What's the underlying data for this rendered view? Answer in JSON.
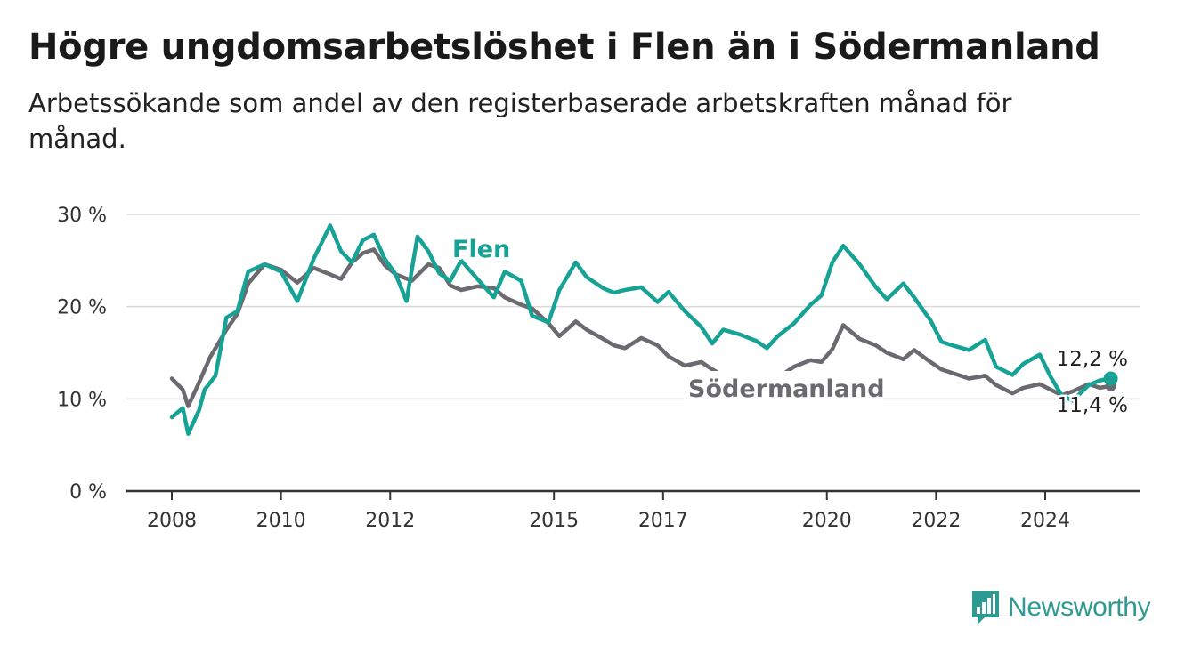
{
  "header": {
    "title": "Högre ungdomsarbetslöshet i Flen än i Södermanland",
    "subtitle": "Arbetssökande som andel av den registerbaserade arbetskraften månad för månad."
  },
  "brand": {
    "name": "Newsworthy",
    "color": "#2e9a92"
  },
  "colors": {
    "flen": "#17a296",
    "sodermanland": "#6b6a70",
    "grid": "#d9d9d9",
    "axis": "#333333"
  },
  "chart_data": {
    "type": "line",
    "title": "Högre ungdomsarbetslöshet i Flen än i Södermanland",
    "subtitle": "Arbetssökande som andel av den registerbaserade arbetskraften månad för månad.",
    "xlabel": "",
    "ylabel": "",
    "xlim": [
      2008,
      2026
    ],
    "ylim": [
      0,
      30
    ],
    "y_ticks": [
      0,
      10,
      20,
      30
    ],
    "y_tick_labels": [
      "0 %",
      "10 %",
      "20 %",
      "30 %"
    ],
    "x_ticks": [
      2008,
      2010,
      2012,
      2015,
      2017,
      2020,
      2022,
      2024
    ],
    "x_tick_labels": [
      "2008",
      "2010",
      "2012",
      "2015",
      "2017",
      "2020",
      "2022",
      "2024"
    ],
    "grid": true,
    "legend": "inline labels",
    "series": [
      {
        "name": "Flen",
        "label": "Flen",
        "end_label": "12,2 %",
        "x": [
          2008.0,
          2008.2,
          2008.3,
          2008.4,
          2008.5,
          2008.6,
          2008.8,
          2009.0,
          2009.2,
          2009.4,
          2009.7,
          2010.0,
          2010.3,
          2010.6,
          2010.9,
          2011.1,
          2011.3,
          2011.5,
          2011.7,
          2011.9,
          2012.1,
          2012.3,
          2012.5,
          2012.7,
          2012.9,
          2013.1,
          2013.3,
          2013.6,
          2013.9,
          2014.1,
          2014.4,
          2014.6,
          2014.9,
          2015.1,
          2015.4,
          2015.6,
          2015.9,
          2016.1,
          2016.3,
          2016.6,
          2016.9,
          2017.1,
          2017.4,
          2017.7,
          2017.9,
          2018.1,
          2018.4,
          2018.7,
          2018.9,
          2019.1,
          2019.4,
          2019.7,
          2019.9,
          2020.1,
          2020.3,
          2020.6,
          2020.9,
          2021.1,
          2021.4,
          2021.6,
          2021.9,
          2022.1,
          2022.3,
          2022.6,
          2022.9,
          2023.1,
          2023.4,
          2023.6,
          2023.9,
          2024.1,
          2024.3,
          2024.5,
          2024.8,
          2025.0,
          2025.2
        ],
        "y": [
          8.0,
          9.0,
          6.2,
          7.5,
          8.8,
          11.0,
          12.5,
          18.8,
          19.5,
          23.8,
          24.6,
          23.8,
          20.6,
          25.2,
          28.8,
          26.0,
          24.8,
          27.2,
          27.8,
          25.2,
          23.5,
          20.6,
          27.6,
          26.0,
          23.6,
          22.8,
          25.0,
          23.0,
          21.0,
          23.8,
          22.8,
          19.0,
          18.3,
          21.8,
          24.8,
          23.2,
          22.0,
          21.5,
          21.8,
          22.1,
          20.5,
          21.6,
          19.5,
          17.8,
          16.0,
          17.5,
          17.0,
          16.3,
          15.5,
          16.8,
          18.2,
          20.2,
          21.2,
          24.8,
          26.6,
          24.6,
          22.1,
          20.8,
          22.5,
          21.0,
          18.5,
          16.2,
          15.8,
          15.3,
          16.4,
          13.5,
          12.6,
          13.8,
          14.8,
          12.4,
          10.4,
          9.8,
          11.5,
          12.0,
          12.2
        ]
      },
      {
        "name": "Södermanland",
        "label": "Södermanland",
        "end_label": "11,4 %",
        "x": [
          2008.0,
          2008.2,
          2008.3,
          2008.5,
          2008.7,
          2009.0,
          2009.2,
          2009.4,
          2009.7,
          2010.0,
          2010.3,
          2010.6,
          2010.9,
          2011.1,
          2011.3,
          2011.5,
          2011.7,
          2011.9,
          2012.1,
          2012.4,
          2012.7,
          2012.9,
          2013.1,
          2013.3,
          2013.6,
          2013.9,
          2014.1,
          2014.4,
          2014.6,
          2014.9,
          2015.1,
          2015.4,
          2015.6,
          2015.9,
          2016.1,
          2016.3,
          2016.6,
          2016.9,
          2017.1,
          2017.4,
          2017.7,
          2017.9,
          2018.1,
          2018.4,
          2018.7,
          2018.9,
          2019.1,
          2019.4,
          2019.7,
          2019.9,
          2020.1,
          2020.3,
          2020.6,
          2020.9,
          2021.1,
          2021.4,
          2021.6,
          2021.9,
          2022.1,
          2022.3,
          2022.6,
          2022.9,
          2023.1,
          2023.4,
          2023.6,
          2023.9,
          2024.1,
          2024.3,
          2024.5,
          2024.8,
          2025.0,
          2025.2
        ],
        "y": [
          12.2,
          11.0,
          9.2,
          11.8,
          14.5,
          17.5,
          19.2,
          22.5,
          24.6,
          24.0,
          22.6,
          24.2,
          23.5,
          23.0,
          24.8,
          25.8,
          26.2,
          24.5,
          23.5,
          22.8,
          24.6,
          24.2,
          22.3,
          21.8,
          22.2,
          22.0,
          21.0,
          20.2,
          19.8,
          18.2,
          16.8,
          18.4,
          17.5,
          16.5,
          15.8,
          15.5,
          16.6,
          15.8,
          14.6,
          13.6,
          14.0,
          13.2,
          12.5,
          12.2,
          12.0,
          11.8,
          12.3,
          13.5,
          14.2,
          14.0,
          15.4,
          18.0,
          16.5,
          15.8,
          15.0,
          14.3,
          15.3,
          14.0,
          13.2,
          12.8,
          12.2,
          12.5,
          11.5,
          10.6,
          11.2,
          11.6,
          11.0,
          10.4,
          10.8,
          11.6,
          11.2,
          11.4
        ]
      }
    ]
  }
}
